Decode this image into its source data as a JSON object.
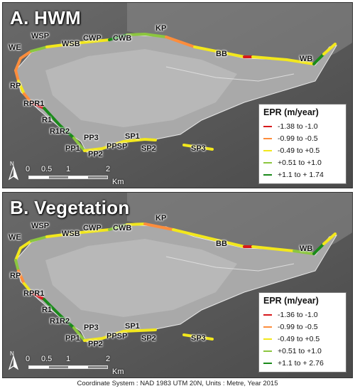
{
  "panels": [
    {
      "title": "A. HWM",
      "legend": {
        "title": "EPR (m/year)",
        "items": [
          {
            "label": "-1.38 to -1.0",
            "color": "#d7191c"
          },
          {
            "label": "-0.99 to -0.5",
            "color": "#fd8d3c"
          },
          {
            "label": "-0.49 to +0.5",
            "color": "#f2e71c"
          },
          {
            "label": "+0.51 to +1.0",
            "color": "#8cc63f"
          },
          {
            "label": "+1.1 to + 1.74",
            "color": "#1a8a1a"
          }
        ]
      },
      "sites": {
        "WE": "WE",
        "WSP": "WSP",
        "WSB": "WSB",
        "CWP": "CWP",
        "CWB": "CWB",
        "KP": "KP",
        "BB": "BB",
        "WB": "WB",
        "RP": "RP",
        "RPR1": "RPR1",
        "R1": "R1",
        "R1R2": "R1R2",
        "PP1": "PP1",
        "PP3": "PP3",
        "PP2": "PP2",
        "PPSP": "PPSP",
        "SP1": "SP1",
        "SP2": "SP2",
        "SP3": "SP3"
      }
    },
    {
      "title": "B. Vegetation",
      "legend": {
        "title": "EPR (m/year)",
        "items": [
          {
            "label": "-1.36 to -1.0",
            "color": "#d7191c"
          },
          {
            "label": "-0.99 to -0.5",
            "color": "#fd8d3c"
          },
          {
            "label": "-0.49 to +0.5",
            "color": "#f2e71c"
          },
          {
            "label": "+0.51 to +1.0",
            "color": "#8cc63f"
          },
          {
            "label": "+1.1 to + 2.76",
            "color": "#1a8a1a"
          }
        ]
      },
      "sites": {
        "WE": "WE",
        "WSP": "WSP",
        "WSB": "WSB",
        "CWP": "CWP",
        "CWB": "CWB",
        "KP": "KP",
        "BB": "BB",
        "WB": "WB",
        "RP": "RP",
        "RPR1": "RPR1",
        "R1": "R1",
        "R1R2": "R1R2",
        "PP1": "PP1",
        "PP3": "PP3",
        "PP2": "PP2",
        "PPSP": "PPSP",
        "SP1": "SP1",
        "SP2": "SP2",
        "SP3": "SP3"
      }
    }
  ],
  "scale": {
    "t0": "0",
    "t1": "0.5",
    "t2": "1",
    "t3": "2",
    "unit": "Km"
  },
  "north_label": "N",
  "footer": "Coordinate System : NAD 1983 UTM 20N, Units : Metre, Year 2015"
}
